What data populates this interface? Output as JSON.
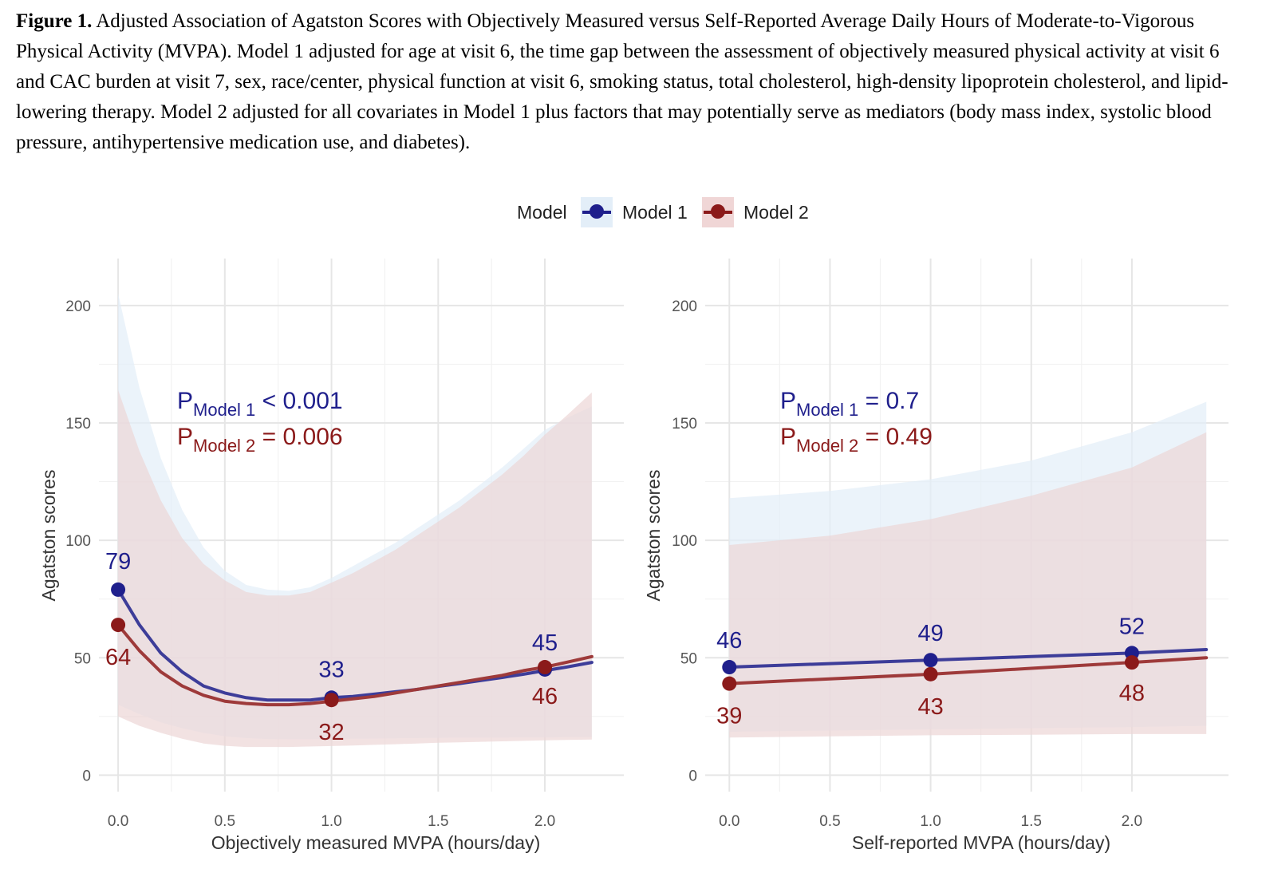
{
  "caption": {
    "label": "Figure 1.",
    "text": "Adjusted Association of Agatston Scores with Objectively Measured versus Self-Reported Average Daily Hours of Moderate-to-Vigorous Physical Activity (MVPA). Model 1 adjusted for age at visit 6, the time gap between the assessment of objectively measured physical activity at visit 6 and CAC burden at visit 7, sex, race/center, physical function at visit 6, smoking status, total cholesterol, high-density lipoprotein cholesterol, and lipid-lowering therapy. Model 2 adjusted for all covariates in Model 1 plus factors that may potentially serve as mediators (body mass index, systolic blood pressure, antihypertensive medication use, and diabetes)."
  },
  "legend": {
    "title": "Model",
    "items": [
      {
        "name": "Model 1",
        "color": "#1f1f8c",
        "band": "#e3eef8"
      },
      {
        "name": "Model 2",
        "color": "#8b1a1a",
        "band": "#f0d6d6"
      }
    ]
  },
  "chart_data": [
    {
      "type": "line",
      "xlabel": "Objectively measured MVPA (hours/day)",
      "ylabel": "Agatston scores",
      "xlim": [
        -0.09,
        2.37
      ],
      "ylim": [
        -7,
        220
      ],
      "xticks": [
        0.0,
        0.5,
        1.0,
        1.5,
        2.0
      ],
      "xtick_labels": [
        "0.0",
        "0.5",
        "1.0",
        "1.5",
        "2.0"
      ],
      "yticks": [
        0,
        50,
        100,
        150,
        200
      ],
      "ytick_labels": [
        "0",
        "50",
        "100",
        "150",
        "200"
      ],
      "annotations": [
        {
          "series": "Model 1",
          "prefix": "P",
          "sub": "Model 1",
          "text": " < 0.001"
        },
        {
          "series": "Model 2",
          "prefix": "P",
          "sub": "Model 2",
          "text": " = 0.006"
        }
      ],
      "series": [
        {
          "name": "Model 1",
          "color": "#3d3d99",
          "point_color": "#1f1f8c",
          "band_color": "#e3eef8",
          "x": [
            0,
            0.1,
            0.2,
            0.3,
            0.4,
            0.5,
            0.6,
            0.7,
            0.8,
            0.9,
            1.0,
            1.1,
            1.2,
            1.3,
            1.4,
            1.5,
            1.6,
            1.7,
            1.8,
            1.9,
            2.0,
            2.1,
            2.22
          ],
          "y": [
            79,
            64,
            52,
            44,
            38,
            35,
            33,
            32,
            32,
            32,
            33,
            33.5,
            34.5,
            35.5,
            36.5,
            37.8,
            39,
            40.3,
            41.6,
            43,
            44.5,
            46,
            48
          ],
          "lower": [
            30,
            26,
            22.5,
            20,
            18,
            16.5,
            15.8,
            15.4,
            15.3,
            15.3,
            15.4,
            15.5,
            15.6,
            15.7,
            15.8,
            15.9,
            16,
            16,
            16,
            16.1,
            16.1,
            16.2,
            16.2
          ],
          "upper": [
            205,
            165,
            135,
            113,
            97,
            87,
            81,
            79,
            78.5,
            80,
            84,
            89,
            94,
            99,
            105,
            111,
            117,
            124,
            131,
            139,
            147,
            152,
            157
          ],
          "points": [
            {
              "x": 0.0,
              "y": 79,
              "label": "79"
            },
            {
              "x": 1.0,
              "y": 33,
              "label": "33"
            },
            {
              "x": 2.0,
              "y": 45,
              "label": "45"
            }
          ]
        },
        {
          "name": "Model 2",
          "color": "#9e3a3a",
          "point_color": "#8b1a1a",
          "band_color": "#ecd6d6",
          "x": [
            0,
            0.1,
            0.2,
            0.3,
            0.4,
            0.5,
            0.6,
            0.7,
            0.8,
            0.9,
            1.0,
            1.1,
            1.2,
            1.3,
            1.4,
            1.5,
            1.6,
            1.7,
            1.8,
            1.9,
            2.0,
            2.1,
            2.22
          ],
          "y": [
            64,
            53,
            44,
            38,
            34,
            31.5,
            30.5,
            30,
            30,
            30.5,
            31.5,
            32.5,
            33.5,
            35,
            36.5,
            38,
            39.5,
            41,
            42.5,
            44.5,
            46,
            48,
            50.5
          ],
          "lower": [
            25,
            21,
            18,
            15.5,
            13.5,
            12.5,
            12,
            12,
            12,
            12.2,
            12.4,
            12.6,
            12.9,
            13.2,
            13.5,
            13.8,
            14,
            14.2,
            14.4,
            14.6,
            14.8,
            15,
            15.2
          ],
          "upper": [
            164,
            138,
            117,
            101,
            90,
            83,
            78,
            76.5,
            76.5,
            78,
            82,
            86,
            91,
            96,
            102,
            108,
            114,
            121,
            128,
            136,
            145,
            153,
            163
          ],
          "points": [
            {
              "x": 0.0,
              "y": 64,
              "label": "64"
            },
            {
              "x": 1.0,
              "y": 32,
              "label": "32"
            },
            {
              "x": 2.0,
              "y": 46,
              "label": "46"
            }
          ]
        }
      ]
    },
    {
      "type": "line",
      "xlabel": "Self-reported MVPA (hours/day)",
      "ylabel": "Agatston scores",
      "xlim": [
        -0.12,
        2.48
      ],
      "ylim": [
        -7,
        220
      ],
      "xticks": [
        0.0,
        0.5,
        1.0,
        1.5,
        2.0
      ],
      "xtick_labels": [
        "0.0",
        "0.5",
        "1.0",
        "1.5",
        "2.0"
      ],
      "yticks": [
        0,
        50,
        100,
        150,
        200
      ],
      "ytick_labels": [
        "0",
        "50",
        "100",
        "150",
        "200"
      ],
      "annotations": [
        {
          "series": "Model 1",
          "prefix": "P",
          "sub": "Model 1",
          "text": " = 0.7"
        },
        {
          "series": "Model 2",
          "prefix": "P",
          "sub": "Model 2",
          "text": " = 0.49"
        }
      ],
      "series": [
        {
          "name": "Model 1",
          "color": "#3d3d99",
          "point_color": "#1f1f8c",
          "band_color": "#e3eef8",
          "x": [
            0,
            0.5,
            1.0,
            1.5,
            2.0,
            2.37
          ],
          "y": [
            46,
            47.5,
            49,
            50.5,
            52,
            53.5
          ],
          "lower": [
            18.5,
            19,
            19.5,
            20,
            20.5,
            21
          ],
          "upper": [
            118,
            121,
            126,
            134,
            146,
            159
          ],
          "points": [
            {
              "x": 0.0,
              "y": 46,
              "label": "46"
            },
            {
              "x": 1.0,
              "y": 49,
              "label": "49"
            },
            {
              "x": 2.0,
              "y": 52,
              "label": "52"
            }
          ]
        },
        {
          "name": "Model 2",
          "color": "#9e3a3a",
          "point_color": "#8b1a1a",
          "band_color": "#ecd6d6",
          "x": [
            0,
            0.5,
            1.0,
            1.5,
            2.0,
            2.37
          ],
          "y": [
            39,
            41,
            43,
            45.5,
            48,
            50
          ],
          "lower": [
            16,
            16.5,
            17,
            17.2,
            17.5,
            17.5
          ],
          "upper": [
            98,
            102,
            109,
            119,
            131,
            146
          ],
          "points": [
            {
              "x": 0.0,
              "y": 39,
              "label": "39"
            },
            {
              "x": 1.0,
              "y": 43,
              "label": "43"
            },
            {
              "x": 2.0,
              "y": 48,
              "label": "48"
            }
          ]
        }
      ]
    }
  ]
}
